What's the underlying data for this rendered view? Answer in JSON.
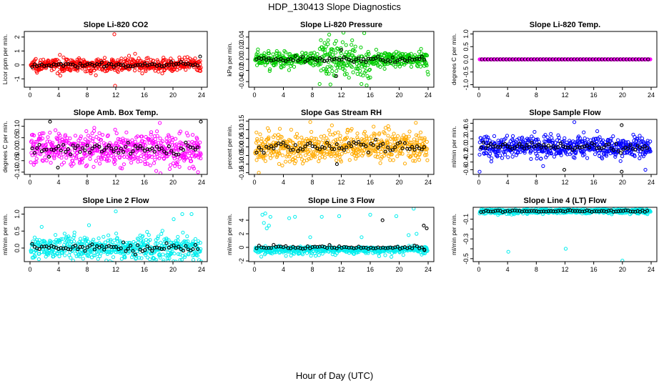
{
  "figure": {
    "title": "HDP_130413  Slope Diagnostics",
    "xlabel": "Hour of Day (UTC)"
  },
  "chart_data": [
    {
      "type": "scatter",
      "title": "Slope Li-820 CO2",
      "ylabel": "Licor ppm per min.",
      "color": "#ff0000",
      "xlim": [
        0,
        24
      ],
      "ylim": [
        -1.6,
        2.4
      ],
      "xticks": [
        0,
        4,
        8,
        12,
        16,
        20,
        24
      ],
      "yticks": [
        -1,
        0,
        1,
        2
      ],
      "ytick_labels": [
        "-1",
        "0",
        "1",
        "2"
      ],
      "noise": 0.22,
      "outliers_colored": [
        [
          11.8,
          2.2
        ],
        [
          11.9,
          -1.5
        ],
        [
          14.7,
          0.8
        ],
        [
          8.5,
          -0.6
        ]
      ],
      "outliers_black": [
        [
          23.8,
          0.6
        ]
      ]
    },
    {
      "type": "scatter",
      "title": "Slope Li-820 Pressure",
      "ylabel": "kPa per min.",
      "color": "#00cc00",
      "xlim": [
        0,
        24
      ],
      "ylim": [
        -0.05,
        0.05
      ],
      "xticks": [
        0,
        4,
        8,
        12,
        16,
        20,
        24
      ],
      "yticks": [
        -0.04,
        -0.02,
        0.0,
        0.02,
        0.04
      ],
      "ytick_labels": [
        "-0.04",
        "-0.02",
        "0.00",
        "0.02",
        "0.04"
      ],
      "noise": 0.007,
      "spread_zone": [
        9,
        16,
        0.02
      ],
      "outliers_colored": [
        [
          12.3,
          0.048
        ],
        [
          10.5,
          -0.045
        ],
        [
          24,
          -0.027
        ]
      ],
      "outliers_black": [
        [
          11.3,
          -0.03
        ],
        [
          12,
          0.017
        ]
      ]
    },
    {
      "type": "scatter",
      "title": "Slope Li-820 Temp.",
      "ylabel": "degrees C per min.",
      "color": "#ff00ff",
      "xlim": [
        0,
        24
      ],
      "ylim": [
        -1.1,
        1.1
      ],
      "xticks": [
        0,
        4,
        8,
        12,
        16,
        20,
        24
      ],
      "yticks": [
        -1,
        -0.5,
        0,
        0.5,
        1
      ],
      "ytick_labels": [
        "-1.0",
        "-0.5",
        "0.0",
        "0.5",
        "1.0"
      ],
      "noise": 0.0,
      "outliers_colored": [],
      "outliers_black": []
    },
    {
      "type": "scatter",
      "title": "Slope Amb. Box Temp.",
      "ylabel": "degrees C per min.",
      "color": "#ff00ff",
      "xlim": [
        0,
        24
      ],
      "ylim": [
        -0.11,
        0.13
      ],
      "xticks": [
        0,
        4,
        8,
        12,
        16,
        20,
        24
      ],
      "yticks": [
        -0.1,
        -0.05,
        0.0,
        0.05,
        0.1
      ],
      "ytick_labels": [
        "-0.10",
        "-0.05",
        "0.00",
        "0.05",
        "0.10"
      ],
      "noise": 0.035,
      "outliers_colored": [
        [
          23.5,
          -0.1
        ]
      ],
      "outliers_black": [
        [
          2.8,
          0.12
        ],
        [
          23.9,
          0.12
        ],
        [
          3.9,
          -0.08
        ]
      ]
    },
    {
      "type": "scatter",
      "title": "Slope Gas Stream RH",
      "ylabel": "percent per min.",
      "color": "#ffaa00",
      "xlim": [
        0,
        24
      ],
      "ylim": [
        -0.16,
        0.16
      ],
      "xticks": [
        0,
        4,
        8,
        12,
        16,
        20,
        24
      ],
      "yticks": [
        -0.15,
        -0.1,
        -0.05,
        0.0,
        0.05,
        0.1,
        0.15
      ],
      "ytick_labels": [
        "-0.15",
        "-0.10",
        "-0.05",
        "0.00",
        "0.05",
        "0.10",
        "0.15"
      ],
      "noise": 0.045,
      "outliers_colored": [
        [
          22.3,
          0.14
        ],
        [
          0.6,
          -0.15
        ]
      ],
      "outliers_black": [
        [
          11.4,
          -0.1
        ]
      ]
    },
    {
      "type": "scatter",
      "title": "Slope Sample Flow",
      "ylabel": "ml/min per min.",
      "color": "#0000ff",
      "xlim": [
        0,
        24
      ],
      "ylim": [
        -0.72,
        0.7
      ],
      "xticks": [
        0,
        4,
        8,
        12,
        16,
        20,
        24
      ],
      "yticks": [
        -0.6,
        -0.4,
        -0.2,
        0.0,
        0.2,
        0.4,
        0.6
      ],
      "ytick_labels": [
        "-0.6",
        "-0.4",
        "-0.2",
        "0.0",
        "0.2",
        "0.4",
        "0.6"
      ],
      "noise": 0.14,
      "outliers_colored": [
        [
          0.1,
          -0.65
        ],
        [
          13.3,
          0.63
        ],
        [
          23.2,
          -0.6
        ]
      ],
      "outliers_black": [
        [
          11.9,
          -0.6
        ],
        [
          19.9,
          -0.65
        ],
        [
          19.9,
          0.55
        ]
      ]
    },
    {
      "type": "scatter",
      "title": "Slope Line 2 Flow",
      "ylabel": "ml/min per min.",
      "color": "#00eeee",
      "xlim": [
        0,
        24
      ],
      "ylim": [
        -0.4,
        1.2
      ],
      "xticks": [
        0,
        4,
        8,
        12,
        16,
        20,
        24
      ],
      "yticks": [
        0.0,
        0.5,
        1.0
      ],
      "ytick_labels": [
        "0.0",
        "0.5",
        "1.0"
      ],
      "noise": 0.17,
      "outliers_colored": [
        [
          12,
          1.08
        ],
        [
          21.3,
          1.0
        ],
        [
          22.6,
          1.0
        ],
        [
          20.1,
          0.85
        ],
        [
          19.5,
          -0.3
        ]
      ],
      "outliers_black": []
    },
    {
      "type": "scatter",
      "title": "Slope Line 3 Flow",
      "ylabel": "ml/min per min.",
      "color": "#00eeee",
      "xlim": [
        0,
        24
      ],
      "ylim": [
        -2.1,
        5.9
      ],
      "xticks": [
        0,
        4,
        8,
        12,
        16,
        20,
        24
      ],
      "yticks": [
        -2,
        0,
        2,
        4
      ],
      "ytick_labels": [
        "-2",
        "0",
        "2",
        "4"
      ],
      "noise": 0.35,
      "negative_skew": true,
      "outliers_colored": [
        [
          1.1,
          4.8
        ],
        [
          1.5,
          5.0
        ],
        [
          2.2,
          4.5
        ],
        [
          1.3,
          3.6
        ],
        [
          2.0,
          3.2
        ],
        [
          1.7,
          2.8
        ],
        [
          4.8,
          4.3
        ],
        [
          5.6,
          4.5
        ],
        [
          7.7,
          1.5
        ],
        [
          9.3,
          4.5
        ],
        [
          11.7,
          4.6
        ],
        [
          14.8,
          1.5
        ],
        [
          16.0,
          4.8
        ],
        [
          19.6,
          4.6
        ],
        [
          22.0,
          5.7
        ],
        [
          21.3,
          1.8
        ],
        [
          22.4,
          2.0
        ]
      ],
      "outliers_black": [
        [
          17.7,
          4.0
        ],
        [
          23.4,
          3.2
        ],
        [
          23.8,
          2.8
        ],
        [
          23.5,
          -0.4
        ]
      ]
    },
    {
      "type": "scatter",
      "title": "Slope Line 4 (LT) Flow",
      "ylabel": "ml/min per min.",
      "color": "#00eeee",
      "xlim": [
        0,
        24
      ],
      "ylim": [
        -0.53,
        0.02
      ],
      "xticks": [
        0,
        4,
        8,
        12,
        16,
        20,
        24
      ],
      "yticks": [
        -0.5,
        -0.4,
        -0.3,
        -0.2,
        -0.1
      ],
      "ytick_labels": [
        "-0.5",
        "",
        "-0.3",
        "",
        "-0.1"
      ],
      "noise": 0.012,
      "centered_at": -0.02,
      "outliers_colored": [
        [
          4.1,
          -0.43
        ],
        [
          12.1,
          -0.4
        ],
        [
          20.0,
          -0.52
        ]
      ],
      "outliers_black": []
    }
  ]
}
